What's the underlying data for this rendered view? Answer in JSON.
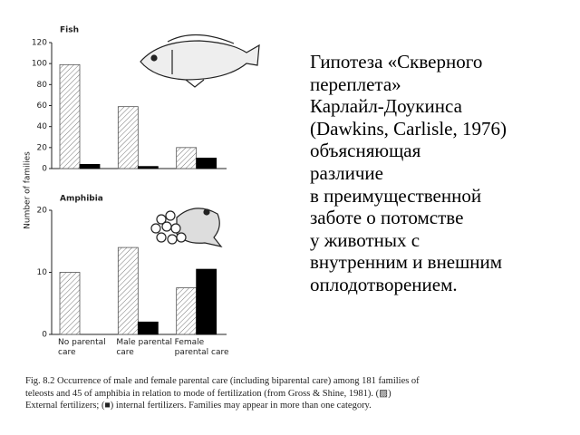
{
  "chart_data": [
    {
      "type": "bar",
      "title": "Fish",
      "categories": [
        null,
        null,
        null
      ],
      "series": [
        {
          "color": "#555555",
          "hatch": true,
          "values": [
            99,
            59,
            20
          ]
        },
        {
          "color": "#000000",
          "hatch": false,
          "values": [
            4,
            2,
            10
          ]
        }
      ],
      "ylim": [
        0,
        120
      ],
      "yticks": [
        0,
        20,
        40,
        60,
        80,
        100,
        120
      ]
    },
    {
      "type": "bar",
      "title": "Amphibia",
      "categories": [
        "No parental care",
        "Male parental care",
        "Female parental care"
      ],
      "series": [
        {
          "color": "#555555",
          "hatch": true,
          "values": [
            10,
            14,
            7.5
          ]
        },
        {
          "color": "#000000",
          "hatch": false,
          "values": [
            0,
            2,
            10.5
          ]
        }
      ],
      "ylim": [
        0,
        20
      ],
      "yticks": [
        0,
        10,
        20
      ]
    }
  ],
  "y_axis_label": "Number of families",
  "text": [
    "Гипотеза «Скверного",
    "переплета»",
    "Карлайл-Доукинса",
    "(Dawkins, Carlisle, 1976)",
    "объясняющая",
    "различие",
    "в преимущественной",
    "заботе о потомстве",
    "у животных с",
    "внутренним и внешним",
    "оплодотворением."
  ],
  "caption": "Fig. 8.2  Occurrence of male and female parental care (including biparental care) among 181 families of teleosts and 45 of amphibia in relation to mode of fertilization (from Gross & Shine, 1981). (▨) External fertilizers; (■) internal fertilizers. Families may appear in more than one category."
}
